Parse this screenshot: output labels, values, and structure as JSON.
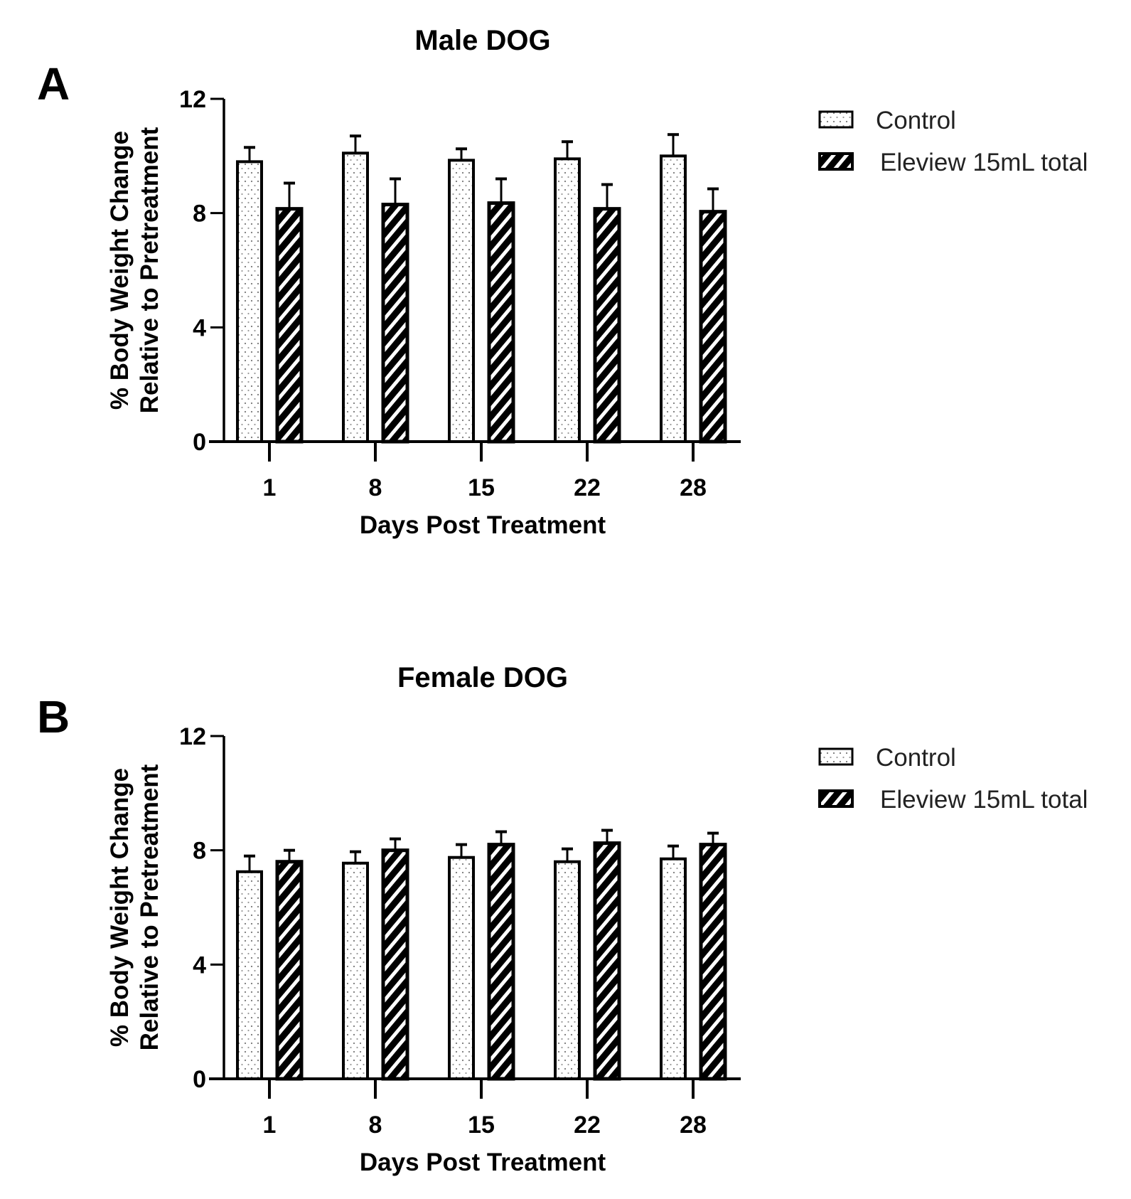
{
  "chart_data": [
    {
      "type": "bar",
      "panel_label": "A",
      "title": "Male DOG",
      "xlabel": "Days Post Treatment",
      "ylabel": [
        "% Body Weight Change",
        "Relative to Pretreatment"
      ],
      "categories": [
        "1",
        "8",
        "15",
        "22",
        "28"
      ],
      "ylim": [
        0,
        12
      ],
      "yticks": [
        "0",
        "4",
        "8",
        "12"
      ],
      "grid": false,
      "legend_position": "right",
      "series": [
        {
          "name": "Control",
          "pattern": "dots",
          "values": [
            9.8,
            10.1,
            9.85,
            9.9,
            10.0
          ],
          "error_upper": [
            10.3,
            10.7,
            10.25,
            10.5,
            10.75
          ]
        },
        {
          "name": "Eleview 15mL total",
          "pattern": "stripes",
          "values": [
            8.15,
            8.3,
            8.35,
            8.15,
            8.05
          ],
          "error_upper": [
            9.05,
            9.2,
            9.2,
            9.0,
            8.85
          ]
        }
      ]
    },
    {
      "type": "bar",
      "panel_label": "B",
      "title": "Female DOG",
      "xlabel": "Days Post Treatment",
      "ylabel": [
        "% Body Weight Change",
        "Relative to Pretreatment"
      ],
      "categories": [
        "1",
        "8",
        "15",
        "22",
        "28"
      ],
      "ylim": [
        0,
        12
      ],
      "yticks": [
        "0",
        "4",
        "8",
        "12"
      ],
      "grid": false,
      "legend_position": "right",
      "series": [
        {
          "name": "Control",
          "pattern": "dots",
          "values": [
            7.25,
            7.55,
            7.75,
            7.6,
            7.7
          ],
          "error_upper": [
            7.8,
            7.95,
            8.2,
            8.05,
            8.15
          ]
        },
        {
          "name": "Eleview 15mL total",
          "pattern": "stripes",
          "values": [
            7.6,
            8.0,
            8.2,
            8.25,
            8.2
          ],
          "error_upper": [
            8.0,
            8.4,
            8.65,
            8.7,
            8.6
          ]
        }
      ]
    }
  ]
}
